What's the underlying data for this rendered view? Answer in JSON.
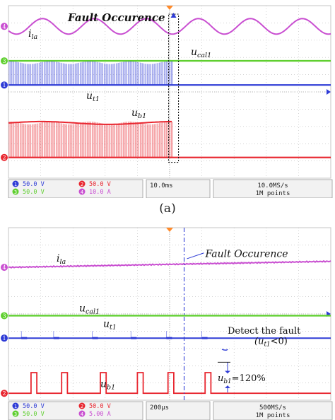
{
  "caption_a": "(a)",
  "chart_data": [
    {
      "type": "line",
      "panel": "a",
      "annotations": {
        "fault": "Fault Occurence",
        "series_labels": [
          {
            "key": "ila",
            "base": "i",
            "sub": "la"
          },
          {
            "key": "ucal1",
            "base": "u",
            "sub": "cal1"
          },
          {
            "key": "ut1",
            "base": "u",
            "sub": "t1"
          },
          {
            "key": "ub1",
            "base": "u",
            "sub": "b1"
          }
        ]
      },
      "channels": [
        {
          "id": "1",
          "scale": "50.0 V",
          "color": "#2e3bd6"
        },
        {
          "id": "2",
          "scale": "50.0 V",
          "color": "#e8262f"
        },
        {
          "id": "3",
          "scale": "50.0 V",
          "color": "#5fcf2f"
        },
        {
          "id": "4",
          "scale": "10.0 A",
          "color": "#c94fd1"
        }
      ],
      "timebase": "10.0ms",
      "sample_rate": "10.0MS/s",
      "record_length": "1M points",
      "fault_time_div": 5.1,
      "series": [
        {
          "key": "ila",
          "channel": "4",
          "shape": "sine",
          "cycles": 6.2,
          "amp_div": 0.45,
          "level_div": 8.8
        },
        {
          "key": "ucal1",
          "channel": "3",
          "shape": "flat",
          "level_div": 6.8
        },
        {
          "key": "ut1",
          "channel": "1",
          "shape": "pwm-then-zero",
          "level_div": 5.4,
          "pwm_high_div": 6.7
        },
        {
          "key": "ub1",
          "channel": "2",
          "shape": "pwm-then-zero",
          "level_div": 1.2,
          "pwm_high_div": 3.2
        }
      ]
    },
    {
      "type": "line",
      "panel": "b",
      "annotations": {
        "fault": "Fault Occurence",
        "detect_line1": "Detect the fault",
        "detect_line2_pre": "(u",
        "detect_line2_sub": "t1",
        "detect_line2_post": "<0)",
        "ub1_eq_pre": "u",
        "ub1_eq_sub": "b1",
        "ub1_eq_post": "=120%",
        "series_labels": [
          {
            "key": "ila",
            "base": "i",
            "sub": "la"
          },
          {
            "key": "ucal1",
            "base": "u",
            "sub": "cal1"
          },
          {
            "key": "ut1",
            "base": "u",
            "sub": "t1"
          },
          {
            "key": "ub1",
            "base": "u",
            "sub": "b1"
          }
        ]
      },
      "channels": [
        {
          "id": "1",
          "scale": "50.0 V",
          "color": "#2e3bd6"
        },
        {
          "id": "2",
          "scale": "50.0 V",
          "color": "#e8262f"
        },
        {
          "id": "3",
          "scale": "50.0 V",
          "color": "#5fcf2f"
        },
        {
          "id": "4",
          "scale": "5.00 A",
          "color": "#c94fd1"
        }
      ],
      "timebase": "200µs",
      "sample_rate": "500MS/s",
      "record_length": "1M points",
      "fault_time_div": 5.45,
      "series": [
        {
          "key": "ila",
          "channel": "4",
          "shape": "ramp",
          "level_div": 7.7
        },
        {
          "key": "ucal1",
          "channel": "3",
          "shape": "flat",
          "level_div": 4.9
        },
        {
          "key": "ut1",
          "channel": "1",
          "shape": "pulses",
          "level_div": 3.6
        },
        {
          "key": "ub1",
          "channel": "2",
          "shape": "pulses",
          "level_div": 0.4,
          "pulse_high_div": 1.6
        }
      ]
    }
  ]
}
